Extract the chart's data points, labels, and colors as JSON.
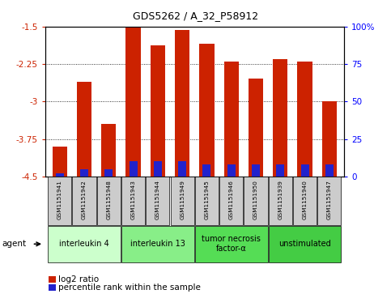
{
  "title": "GDS5262 / A_32_P58912",
  "samples": [
    "GSM1151941",
    "GSM1151942",
    "GSM1151948",
    "GSM1151943",
    "GSM1151944",
    "GSM1151949",
    "GSM1151945",
    "GSM1151946",
    "GSM1151950",
    "GSM1151939",
    "GSM1151940",
    "GSM1151947"
  ],
  "log2_ratio": [
    -3.9,
    -2.6,
    -3.45,
    -1.52,
    -1.88,
    -1.57,
    -1.85,
    -2.2,
    -2.55,
    -2.15,
    -2.2,
    -3.0
  ],
  "percentile_rank": [
    2,
    5,
    5,
    10,
    10,
    10,
    8,
    8,
    8,
    8,
    8,
    8
  ],
  "ylim_left": [
    -4.5,
    -1.5
  ],
  "ylim_right": [
    0,
    100
  ],
  "yticks_left": [
    -4.5,
    -3.75,
    -3.0,
    -2.25,
    -1.5
  ],
  "yticks_right": [
    0,
    25,
    50,
    75,
    100
  ],
  "ytick_labels_left": [
    "-4.5",
    "-3.75",
    "-3",
    "-2.25",
    "-1.5"
  ],
  "ytick_labels_right": [
    "0",
    "25",
    "50",
    "75",
    "100%"
  ],
  "grid_lines": [
    -3.75,
    -3.0,
    -2.25
  ],
  "bar_bottom": -4.5,
  "bar_width": 0.6,
  "red_color": "#CC2200",
  "blue_color": "#2222CC",
  "agents": [
    {
      "label": "interleukin 4",
      "samples": [
        "GSM1151941",
        "GSM1151942",
        "GSM1151948"
      ],
      "color": "#CCFFCC"
    },
    {
      "label": "interleukin 13",
      "samples": [
        "GSM1151943",
        "GSM1151944",
        "GSM1151949"
      ],
      "color": "#88EE88"
    },
    {
      "label": "tumor necrosis\nfactor-α",
      "samples": [
        "GSM1151945",
        "GSM1151946",
        "GSM1151950"
      ],
      "color": "#55DD55"
    },
    {
      "label": "unstimulated",
      "samples": [
        "GSM1151939",
        "GSM1151940",
        "GSM1151947"
      ],
      "color": "#44CC44"
    }
  ],
  "legend_red": "log2 ratio",
  "legend_blue": "percentile rank within the sample",
  "agent_label": "agent",
  "sample_box_color": "#CCCCCC",
  "plot_bg_color": "#FFFFFF"
}
